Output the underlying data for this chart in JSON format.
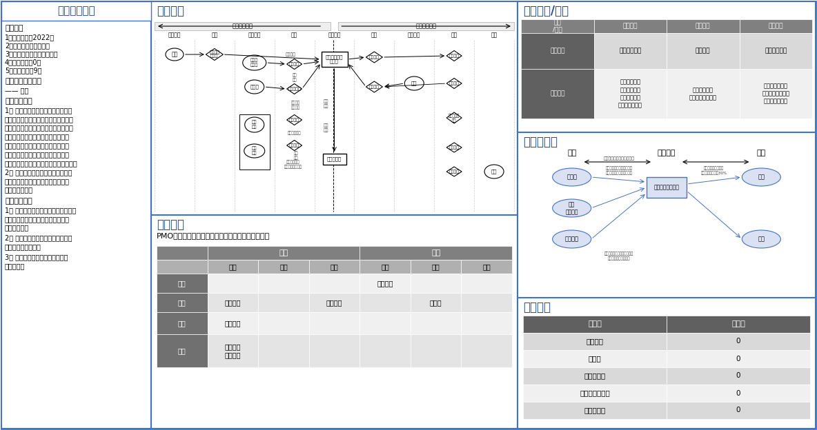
{
  "bg_color": "#ffffff",
  "border_color": "#4472c4",
  "title_color": "#1f4788",
  "panel1_title": "企业背景资料",
  "panel2_title": "业务系统",
  "panel3_title": "盈利模式",
  "panel3_subtitle": "PMO模式：成本支付方为企业，收入来源为直接顾客",
  "panel4_title": "关键资源/能力",
  "panel5_title": "现金流结构",
  "panel6_title": "企业价值",
  "ev_headers": [
    "指标名",
    "指标值"
  ],
  "ev_rows": [
    [
      "人均利润",
      "0"
    ],
    [
      "销售额",
      "0"
    ],
    [
      "资产回报率",
      "0"
    ],
    [
      "未来三年营业额",
      "0"
    ],
    [
      "利润增长率",
      "0"
    ]
  ],
  "kv_col_headers": [
    "资源\n/能力",
    "软件研发",
    "市场营销",
    "智能服务"
  ],
  "kv_row1_label": "对应资源",
  "kv_row1_vals": [
    "东北大学学生",
    "市场资源",
    "问卷智能平台"
  ],
  "kv_row2_label": "对应能力",
  "kv_row2_vals": [
    "软件工程能力\n云边融合能力\n人工智能能力\n大数据分析能力",
    "营销策划能力\n宣传推荐策划能力",
    "大开发服务能力\n系统维护运行能力\n个性化服务能力"
  ],
  "profit_col1": [
    "",
    "固定",
    "剩余",
    "分成"
  ],
  "profit_col2": [
    "一次",
    "计量",
    "免费"
  ],
  "profit_rows": [
    [
      "即时",
      "",
      "",
      "",
      "使用系统",
      "",
      ""
    ],
    [
      "月度",
      "运营费用",
      "",
      "代理分成",
      "",
      "服务费",
      ""
    ],
    [
      "季度",
      "市场费用",
      "",
      "",
      "",
      "",
      ""
    ],
    [
      "年度",
      "研发成本\n管理成本",
      "",
      "",
      "",
      "",
      ""
    ]
  ]
}
